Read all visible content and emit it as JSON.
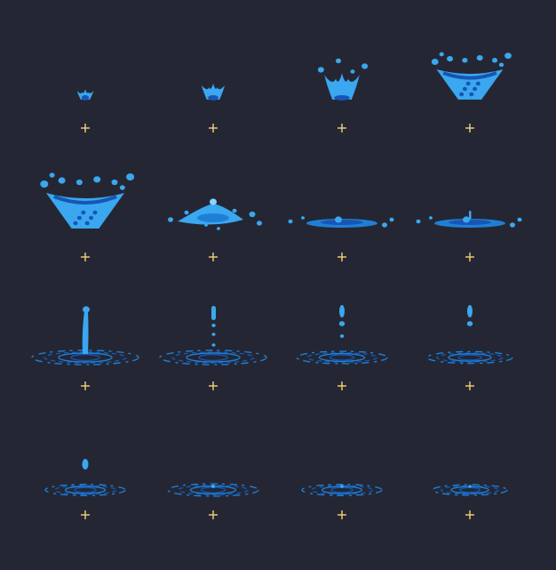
{
  "sheet": {
    "background": "#242733",
    "colors": {
      "water_light": "#3aa7f0",
      "water_mid": "#1f7fd6",
      "water_dark": "#1656b4",
      "water_highlight": "#8fd3ff",
      "pivot_marker": "#f3d37a"
    },
    "frames": [
      {
        "id": 1,
        "phase": "crown",
        "size": 0.15
      },
      {
        "id": 2,
        "phase": "crown",
        "size": 0.32
      },
      {
        "id": 3,
        "phase": "crown",
        "size": 0.62
      },
      {
        "id": 4,
        "phase": "cone",
        "size": 0.85
      },
      {
        "id": 5,
        "phase": "cone",
        "size": 1.0
      },
      {
        "id": 6,
        "phase": "spread",
        "size": 0.9
      },
      {
        "id": 7,
        "phase": "flat",
        "size": 1.0
      },
      {
        "id": 8,
        "phase": "flat",
        "size": 1.0
      },
      {
        "id": 9,
        "phase": "jet",
        "size": 1.0
      },
      {
        "id": 10,
        "phase": "jet",
        "size": 0.8
      },
      {
        "id": 11,
        "phase": "droplet",
        "size": 0.75
      },
      {
        "id": 12,
        "phase": "droplet",
        "size": 0.7
      },
      {
        "id": 13,
        "phase": "drip",
        "size": 0.55
      },
      {
        "id": 14,
        "phase": "ripple",
        "size": 0.4
      },
      {
        "id": 15,
        "phase": "ripple",
        "size": 0.3
      },
      {
        "id": 16,
        "phase": "ripple",
        "size": 0.25
      }
    ],
    "pivot_icon": "crosshair-plus-icon"
  }
}
